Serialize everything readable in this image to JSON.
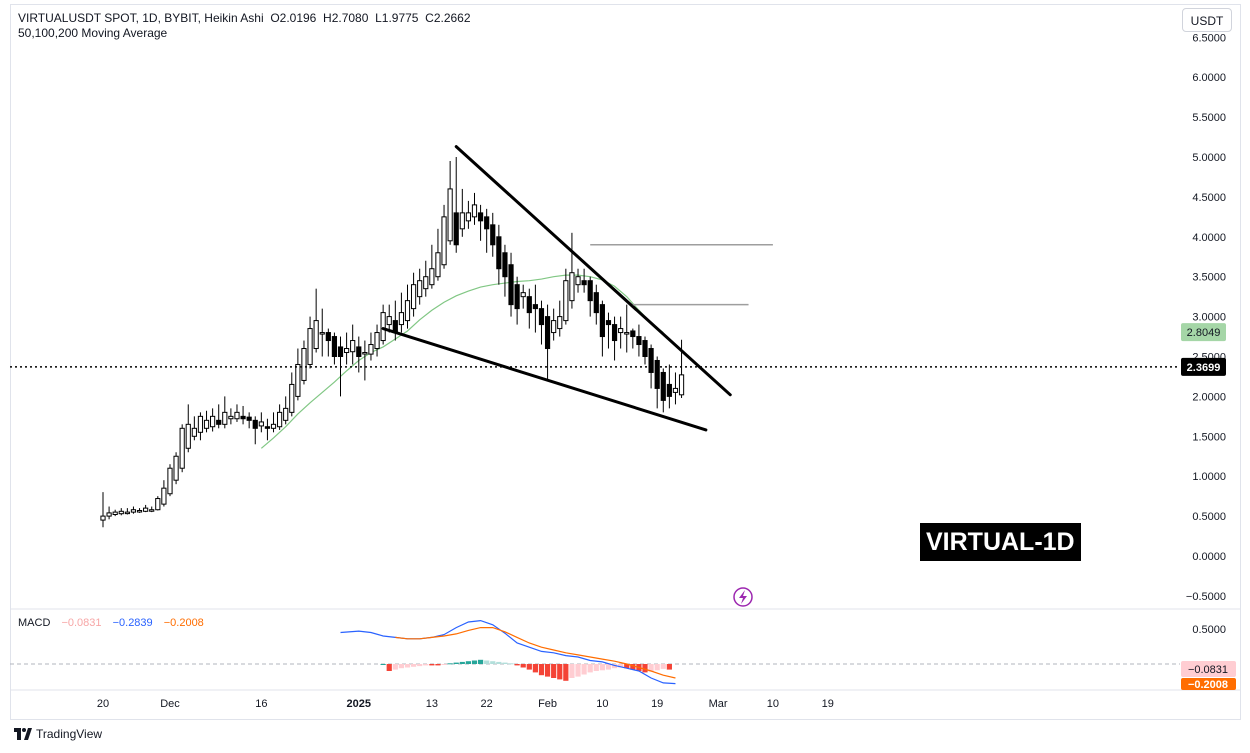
{
  "header": {
    "line1_symbol": "VIRTUALUSDT SPOT, 1D, BYBIT, Heikin Ashi",
    "open_label": "O",
    "open": "2.0196",
    "high_label": "H",
    "high": "2.7080",
    "low_label": "L",
    "low": "1.9775",
    "close_label": "C",
    "close": "2.2662",
    "line2_indicator": "50,100,200 Moving Average"
  },
  "unit_badge": "USDT",
  "watermark": "VIRTUAL-1D",
  "footer": {
    "brand": "TradingView"
  },
  "macd_legend": {
    "label": "MACD",
    "hist": "−0.0831",
    "macd": "−0.2839",
    "signal": "−0.2008"
  },
  "colors": {
    "up": "#ffffff",
    "down": "#000000",
    "ma": "#81c784",
    "macd": "#2962ff",
    "signal": "#ff6d00",
    "hist_neg": "#f44336",
    "hist_neg_light": "#ffcdd2",
    "hist_pos": "#26a69a",
    "hist_pos_light": "#b2dfdb"
  },
  "chart_data": {
    "type": "candlestick",
    "candle_style": "Heikin Ashi",
    "y_ticks": [
      "6.5000",
      "6.0000",
      "5.5000",
      "5.0000",
      "4.5000",
      "4.0000",
      "3.5000",
      "3.0000",
      "2.5000",
      "2.0000",
      "1.5000",
      "1.0000",
      "0.5000",
      "0.0000",
      "−0.5000"
    ],
    "y_tick_values": [
      6.5,
      6.0,
      5.5,
      5.0,
      4.5,
      4.0,
      3.5,
      3.0,
      2.5,
      2.0,
      1.5,
      1.0,
      0.5,
      0.0,
      -0.5
    ],
    "x_ticks": [
      {
        "label": "20",
        "date": "2024-11-20",
        "bold": false
      },
      {
        "label": "Dec",
        "date": "2024-12-01",
        "bold": false
      },
      {
        "label": "16",
        "date": "2024-12-16",
        "bold": false
      },
      {
        "label": "2025",
        "date": "2025-01-01",
        "bold": true
      },
      {
        "label": "13",
        "date": "2025-01-13",
        "bold": false
      },
      {
        "label": "22",
        "date": "2025-01-22",
        "bold": false
      },
      {
        "label": "Feb",
        "date": "2025-02-01",
        "bold": false
      },
      {
        "label": "10",
        "date": "2025-02-10",
        "bold": false
      },
      {
        "label": "19",
        "date": "2025-02-19",
        "bold": false
      },
      {
        "label": "Mar",
        "date": "2025-03-01",
        "bold": false
      },
      {
        "label": "10",
        "date": "2025-03-10",
        "bold": false
      },
      {
        "label": "19",
        "date": "2025-03-19",
        "bold": false
      }
    ],
    "first_candle_date": "2024-11-20",
    "candles": [
      [
        0.45,
        0.5,
        0.8,
        0.36
      ],
      [
        0.5,
        0.54,
        0.62,
        0.46
      ],
      [
        0.52,
        0.55,
        0.58,
        0.5
      ],
      [
        0.53,
        0.56,
        0.6,
        0.51
      ],
      [
        0.54,
        0.55,
        0.6,
        0.52
      ],
      [
        0.55,
        0.58,
        0.62,
        0.53
      ],
      [
        0.56,
        0.57,
        0.6,
        0.54
      ],
      [
        0.56,
        0.6,
        0.64,
        0.55
      ],
      [
        0.58,
        0.58,
        0.62,
        0.55
      ],
      [
        0.58,
        0.72,
        0.75,
        0.57
      ],
      [
        0.65,
        0.85,
        0.95,
        0.62
      ],
      [
        0.78,
        1.1,
        1.15,
        0.75
      ],
      [
        0.95,
        1.25,
        1.3,
        0.9
      ],
      [
        1.1,
        1.6,
        1.65,
        1.05
      ],
      [
        1.35,
        1.65,
        1.9,
        1.3
      ],
      [
        1.5,
        1.6,
        1.75,
        1.45
      ],
      [
        1.55,
        1.75,
        1.8,
        1.45
      ],
      [
        1.6,
        1.7,
        1.82,
        1.55
      ],
      [
        1.62,
        1.75,
        1.85,
        1.56
      ],
      [
        1.7,
        1.65,
        1.9,
        1.6
      ],
      [
        1.65,
        1.8,
        2.0,
        1.6
      ],
      [
        1.72,
        1.75,
        1.85,
        1.65
      ],
      [
        1.72,
        1.8,
        1.9,
        1.68
      ],
      [
        1.75,
        1.72,
        1.88,
        1.65
      ],
      [
        1.74,
        1.7,
        1.8,
        1.6
      ],
      [
        1.7,
        1.6,
        1.75,
        1.4
      ],
      [
        1.63,
        1.68,
        1.8,
        1.55
      ],
      [
        1.62,
        1.6,
        1.72,
        1.45
      ],
      [
        1.6,
        1.65,
        1.8,
        1.55
      ],
      [
        1.62,
        1.8,
        1.9,
        1.58
      ],
      [
        1.7,
        1.85,
        2.0,
        1.65
      ],
      [
        1.8,
        2.15,
        2.3,
        1.75
      ],
      [
        2.0,
        2.4,
        2.6,
        1.95
      ],
      [
        2.2,
        2.6,
        2.7,
        2.15
      ],
      [
        2.4,
        2.85,
        3.0,
        2.35
      ],
      [
        2.6,
        2.95,
        3.35,
        2.55
      ],
      [
        2.8,
        2.8,
        3.1,
        2.5
      ],
      [
        2.8,
        2.7,
        2.85,
        2.5
      ],
      [
        2.75,
        2.5,
        2.8,
        2.4
      ],
      [
        2.62,
        2.5,
        2.75,
        2.0
      ],
      [
        2.55,
        2.6,
        2.8,
        2.4
      ],
      [
        2.56,
        2.7,
        2.9,
        2.4
      ],
      [
        2.62,
        2.5,
        2.75,
        2.3
      ],
      [
        2.55,
        2.55,
        2.7,
        2.2
      ],
      [
        2.53,
        2.65,
        2.8,
        2.45
      ],
      [
        2.6,
        2.8,
        2.9,
        2.5
      ],
      [
        2.7,
        3.05,
        3.15,
        2.65
      ],
      [
        2.9,
        3.0,
        3.15,
        2.8
      ],
      [
        2.95,
        2.8,
        3.2,
        2.7
      ],
      [
        2.9,
        3.05,
        3.3,
        2.8
      ],
      [
        2.95,
        3.2,
        3.4,
        2.85
      ],
      [
        3.1,
        3.4,
        3.55,
        3.0
      ],
      [
        3.25,
        3.45,
        3.6,
        3.15
      ],
      [
        3.35,
        3.5,
        3.7,
        3.25
      ],
      [
        3.4,
        3.6,
        3.9,
        3.35
      ],
      [
        3.5,
        3.8,
        4.1,
        3.45
      ],
      [
        3.65,
        4.25,
        4.4,
        3.6
      ],
      [
        3.95,
        4.6,
        4.95,
        3.9
      ],
      [
        4.3,
        3.9,
        5.0,
        3.8
      ],
      [
        4.1,
        4.3,
        4.6,
        4.0
      ],
      [
        4.2,
        4.3,
        4.45,
        4.1
      ],
      [
        4.25,
        4.4,
        4.55,
        4.15
      ],
      [
        4.3,
        4.2,
        4.4,
        3.95
      ],
      [
        4.25,
        4.1,
        4.35,
        3.8
      ],
      [
        4.15,
        3.9,
        4.3,
        3.75
      ],
      [
        4.0,
        3.6,
        4.15,
        3.4
      ],
      [
        3.8,
        3.5,
        3.9,
        3.25
      ],
      [
        3.65,
        3.15,
        3.8,
        3.0
      ],
      [
        3.4,
        3.1,
        3.5,
        2.9
      ],
      [
        3.25,
        3.3,
        3.4,
        3.1
      ],
      [
        3.25,
        3.05,
        3.35,
        2.85
      ],
      [
        3.15,
        3.1,
        3.4,
        2.8
      ],
      [
        3.1,
        2.9,
        3.2,
        2.65
      ],
      [
        3.0,
        2.6,
        3.15,
        2.2
      ],
      [
        2.8,
        2.95,
        3.1,
        2.7
      ],
      [
        2.85,
        3.0,
        3.2,
        2.75
      ],
      [
        2.95,
        3.45,
        3.6,
        2.9
      ],
      [
        3.2,
        3.55,
        4.05,
        3.1
      ],
      [
        3.4,
        3.5,
        3.6,
        3.3
      ],
      [
        3.45,
        3.4,
        3.6,
        3.3
      ],
      [
        3.45,
        3.2,
        3.5,
        3.0
      ],
      [
        3.3,
        3.05,
        3.4,
        2.9
      ],
      [
        3.15,
        2.75,
        3.2,
        2.5
      ],
      [
        2.95,
        2.9,
        3.05,
        2.6
      ],
      [
        2.9,
        2.7,
        3.0,
        2.45
      ],
      [
        2.8,
        2.85,
        3.0,
        2.6
      ],
      [
        2.8,
        2.8,
        3.15,
        2.55
      ],
      [
        2.82,
        2.75,
        2.85,
        2.6
      ],
      [
        2.75,
        2.65,
        2.9,
        2.5
      ],
      [
        2.7,
        2.5,
        2.75,
        2.4
      ],
      [
        2.6,
        2.3,
        2.65,
        2.1
      ],
      [
        2.45,
        2.1,
        2.5,
        1.85
      ],
      [
        2.3,
        1.95,
        2.35,
        1.8
      ],
      [
        2.15,
        2.0,
        2.4,
        1.85
      ],
      [
        2.05,
        2.1,
        2.3,
        1.9
      ],
      [
        2.02,
        2.27,
        2.71,
        1.98
      ]
    ],
    "moving_average_50": [
      [
        26,
        1.35
      ],
      [
        28,
        1.48
      ],
      [
        30,
        1.62
      ],
      [
        32,
        1.78
      ],
      [
        34,
        1.92
      ],
      [
        36,
        2.05
      ],
      [
        38,
        2.18
      ],
      [
        40,
        2.32
      ],
      [
        42,
        2.45
      ],
      [
        44,
        2.55
      ],
      [
        46,
        2.62
      ],
      [
        48,
        2.72
      ],
      [
        50,
        2.82
      ],
      [
        52,
        2.96
      ],
      [
        54,
        3.08
      ],
      [
        56,
        3.18
      ],
      [
        58,
        3.26
      ],
      [
        60,
        3.32
      ],
      [
        62,
        3.37
      ],
      [
        64,
        3.4
      ],
      [
        66,
        3.42
      ],
      [
        68,
        3.44
      ],
      [
        70,
        3.45
      ],
      [
        72,
        3.47
      ],
      [
        74,
        3.5
      ],
      [
        76,
        3.52
      ],
      [
        78,
        3.52
      ],
      [
        80,
        3.5
      ],
      [
        82,
        3.46
      ],
      [
        84,
        3.38
      ],
      [
        86,
        3.25
      ],
      [
        88,
        3.08
      ],
      [
        90,
        2.92
      ],
      [
        92,
        2.8
      ]
    ],
    "last_price": 2.3699,
    "last_price_label": "2.3699",
    "ma_last_label": "2.8049",
    "ma_last_value": 2.8049,
    "trendlines": [
      {
        "from": [
          58,
          5.13
        ],
        "to": [
          103,
          2.02
        ]
      },
      {
        "from": [
          46,
          2.85
        ],
        "to": [
          99,
          1.58
        ]
      }
    ],
    "resistance_lines": [
      {
        "from": [
          80,
          3.9
        ],
        "to": [
          110,
          3.9
        ]
      },
      {
        "from": [
          87,
          3.15
        ],
        "to": [
          106,
          3.15
        ]
      }
    ],
    "macd_panel": {
      "y_ticks": [
        "0.5000"
      ],
      "y_tick_values": [
        0.5
      ],
      "zero_line": 0,
      "hist_label": "−0.0831",
      "hist_value": -0.0831,
      "signal_label": "−0.2008",
      "signal_value": -0.2008,
      "macd_line": [
        [
          39,
          0.45
        ],
        [
          42,
          0.47
        ],
        [
          44,
          0.45
        ],
        [
          46,
          0.4
        ],
        [
          48,
          0.38
        ],
        [
          50,
          0.36
        ],
        [
          52,
          0.36
        ],
        [
          54,
          0.38
        ],
        [
          56,
          0.42
        ],
        [
          58,
          0.52
        ],
        [
          60,
          0.6
        ],
        [
          62,
          0.62
        ],
        [
          64,
          0.56
        ],
        [
          66,
          0.44
        ],
        [
          68,
          0.3
        ],
        [
          70,
          0.24
        ],
        [
          72,
          0.18
        ],
        [
          74,
          0.16
        ],
        [
          76,
          0.12
        ],
        [
          78,
          0.1
        ],
        [
          80,
          0.05
        ],
        [
          82,
          0.03
        ],
        [
          84,
          -0.02
        ],
        [
          86,
          -0.06
        ],
        [
          88,
          -0.1
        ],
        [
          90,
          -0.2
        ],
        [
          92,
          -0.27
        ],
        [
          94,
          -0.28
        ]
      ],
      "signal_line": [
        [
          48,
          0.38
        ],
        [
          50,
          0.36
        ],
        [
          52,
          0.36
        ],
        [
          54,
          0.38
        ],
        [
          56,
          0.4
        ],
        [
          58,
          0.43
        ],
        [
          60,
          0.48
        ],
        [
          62,
          0.52
        ],
        [
          64,
          0.52
        ],
        [
          66,
          0.46
        ],
        [
          68,
          0.38
        ],
        [
          70,
          0.3
        ],
        [
          72,
          0.24
        ],
        [
          74,
          0.2
        ],
        [
          76,
          0.16
        ],
        [
          78,
          0.13
        ],
        [
          80,
          0.1
        ],
        [
          82,
          0.07
        ],
        [
          84,
          0.04
        ],
        [
          86,
          0.0
        ],
        [
          88,
          -0.05
        ],
        [
          90,
          -0.1
        ],
        [
          92,
          -0.16
        ],
        [
          94,
          -0.2
        ]
      ],
      "histogram": [
        0,
        -0.1,
        -0.08,
        -0.06,
        -0.05,
        -0.04,
        -0.03,
        -0.02,
        -0.02,
        -0.02,
        -0.01,
        0.01,
        0.02,
        0.03,
        0.04,
        0.05,
        0.06,
        0.05,
        0.04,
        0.03,
        0.02,
        0.01,
        -0.02,
        -0.05,
        -0.08,
        -0.12,
        -0.16,
        -0.18,
        -0.2,
        -0.22,
        -0.24,
        -0.2,
        -0.18,
        -0.15,
        -0.12,
        -0.1,
        -0.09,
        -0.08,
        -0.06,
        -0.05,
        -0.06,
        -0.08,
        -0.1,
        -0.12,
        -0.11,
        -0.09,
        -0.07,
        -0.08
      ],
      "histogram_start_index": 46
    }
  }
}
